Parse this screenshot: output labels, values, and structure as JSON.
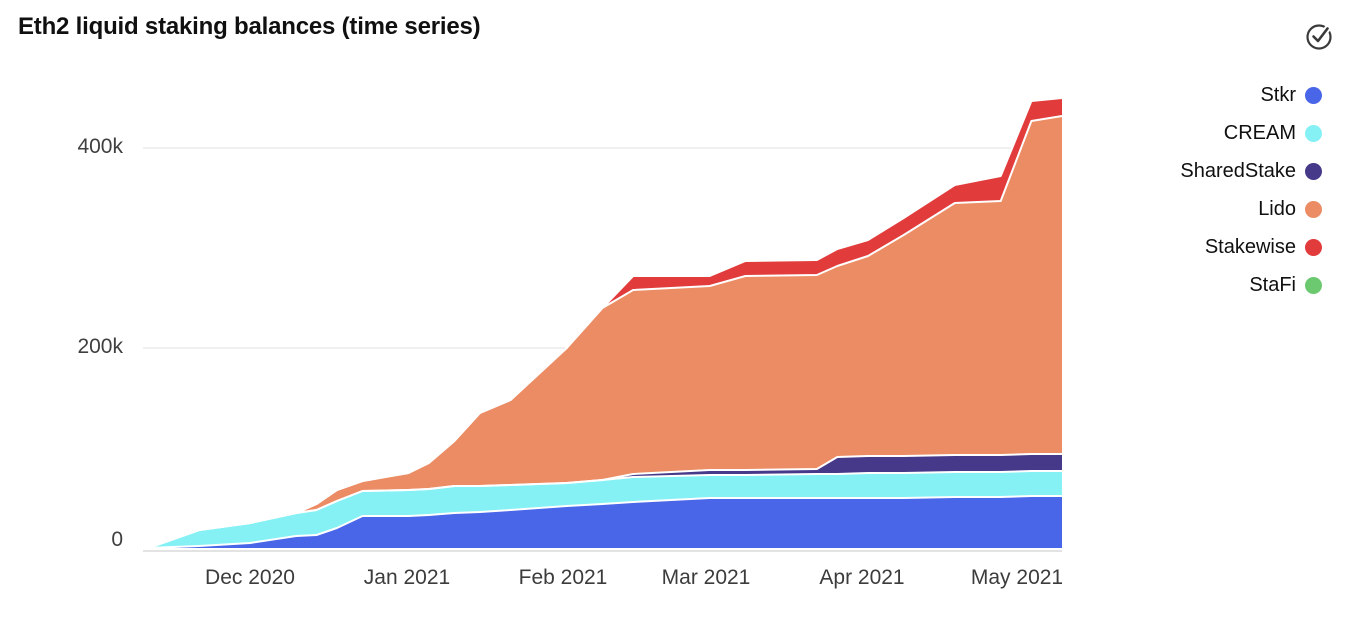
{
  "header": {
    "title": "Eth2 liquid staking balances (time series)",
    "action_icon": "check-circle-icon"
  },
  "chart_data": {
    "type": "area",
    "stacked": true,
    "title": "Eth2 liquid staking balances (time series)",
    "unit": "thousands of ETH (k)",
    "background": "#ffffff",
    "grid_color": "#ececec",
    "axis_line_color": "#e3e3e3",
    "band_separator_color": "#ffffff",
    "legend_position": "right",
    "x_range": [
      "2020-11-11",
      "2021-05-09"
    ],
    "ylim": [
      0,
      460
    ],
    "yticks": [
      {
        "v": 0,
        "label": "0"
      },
      {
        "v": 200,
        "label": "200k"
      },
      {
        "v": 400,
        "label": "400k"
      }
    ],
    "xticks": [
      {
        "date": "2020-12-01",
        "label": "Dec 2020"
      },
      {
        "date": "2021-01-01",
        "label": "Jan 2021"
      },
      {
        "date": "2021-02-01",
        "label": "Feb 2021"
      },
      {
        "date": "2021-03-01",
        "label": "Mar 2021"
      },
      {
        "date": "2021-04-01",
        "label": "Apr 2021"
      },
      {
        "date": "2021-05-01",
        "label": "May 2021"
      }
    ],
    "x_dates": [
      "2020-11-11",
      "2020-11-21",
      "2020-12-01",
      "2020-12-10",
      "2020-12-14",
      "2020-12-18",
      "2020-12-23",
      "2021-01-01",
      "2021-01-05",
      "2021-01-10",
      "2021-01-15",
      "2021-01-21",
      "2021-02-01",
      "2021-02-08",
      "2021-02-14",
      "2021-03-01",
      "2021-03-08",
      "2021-03-22",
      "2021-03-26",
      "2021-04-01",
      "2021-04-08",
      "2021-04-18",
      "2021-04-27",
      "2021-05-03",
      "2021-05-09"
    ],
    "series": [
      {
        "name": "Stkr",
        "color": "#4A66E8",
        "values": [
          0,
          2,
          5,
          12,
          13,
          20,
          32,
          32,
          33,
          35,
          36,
          38,
          42,
          44,
          46,
          50,
          50,
          50,
          50,
          50,
          50,
          51,
          51,
          52,
          52
        ]
      },
      {
        "name": "CREAM",
        "color": "#85F1F5",
        "values": [
          0,
          16,
          20,
          23,
          25,
          27,
          25,
          26,
          26,
          27,
          26,
          25,
          23,
          24,
          25,
          23,
          23,
          24,
          24,
          25,
          25,
          25,
          25,
          25,
          25
        ]
      },
      {
        "name": "SharedStake",
        "color": "#46398A",
        "values": [
          0,
          0,
          0,
          0,
          0,
          0,
          0,
          0,
          0,
          0,
          0,
          0,
          0,
          0,
          3,
          5,
          5,
          5,
          17,
          17,
          17,
          17,
          17,
          17,
          17
        ]
      },
      {
        "name": "Lido",
        "color": "#EC8C64",
        "values": [
          0,
          0,
          0,
          0,
          6,
          11,
          10,
          17,
          26,
          45,
          73,
          85,
          135,
          172,
          184,
          184,
          194,
          194,
          191,
          200,
          221,
          252,
          254,
          333,
          338
        ]
      },
      {
        "name": "Stakewise",
        "color": "#E23B3B",
        "values": [
          0,
          0,
          0,
          0,
          0,
          0,
          0,
          0,
          0,
          0,
          0,
          0,
          0,
          0,
          14,
          10,
          15,
          15,
          17,
          16,
          17,
          18,
          25,
          20,
          18
        ]
      },
      {
        "name": "StaFi",
        "color": "#6CC96F",
        "values": [
          0,
          0,
          0,
          0,
          0,
          0,
          0,
          0,
          0,
          0,
          0,
          0,
          0,
          0,
          0,
          0,
          0,
          0,
          0,
          0,
          0,
          0,
          0,
          0,
          0
        ]
      }
    ]
  }
}
